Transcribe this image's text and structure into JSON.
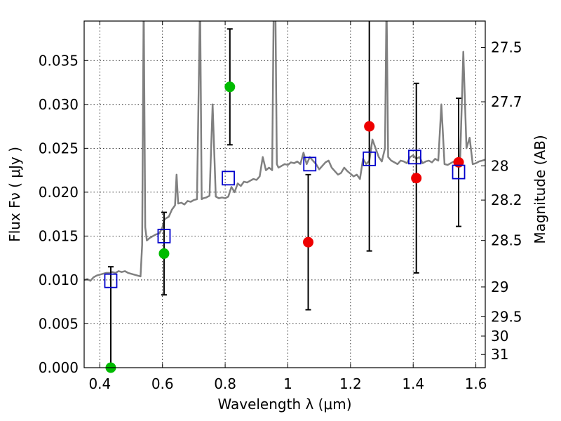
{
  "chart_data": {
    "type": "scatter",
    "xlabel": "Wavelength  λ (μm)",
    "ylabel": "Flux  Fν  ( μJy )",
    "y2label": "Magnitude (AB)",
    "xlim": [
      0.35,
      1.63
    ],
    "ylim": [
      0.0,
      0.0395
    ],
    "grid": true,
    "x_ticks": [
      0.4,
      0.6,
      0.8,
      1.0,
      1.2,
      1.4,
      1.6
    ],
    "x_tick_labels": [
      "0.4",
      "0.6",
      "0.8",
      "1",
      "1.2",
      "1.4",
      "1.6"
    ],
    "y_ticks": [
      0.0,
      0.005,
      0.01,
      0.015,
      0.02,
      0.025,
      0.03,
      0.035
    ],
    "y_tick_labels": [
      "0.000",
      "0.005",
      "0.010",
      "0.015",
      "0.020",
      "0.025",
      "0.030",
      "0.035"
    ],
    "mag_ticks": [
      {
        "label": "27.5",
        "flux": 0.0365
      },
      {
        "label": "27.7",
        "flux": 0.0303
      },
      {
        "label": "28",
        "flux": 0.023
      },
      {
        "label": "28.2",
        "flux": 0.0191
      },
      {
        "label": "28.5",
        "flux": 0.0145
      },
      {
        "label": "29",
        "flux": 0.0092
      },
      {
        "label": "29.5",
        "flux": 0.0058
      },
      {
        "label": "30",
        "flux": 0.0036
      },
      {
        "label": "31",
        "flux": 0.0015
      }
    ],
    "colors": {
      "model_spectrum": "#808080",
      "model_photometry": "#0000cc",
      "optical_detection": "#00bb00",
      "nir_detection": "#ee0000",
      "error_bar": "#000000"
    },
    "model_spectrum": {
      "x": [
        0.35,
        0.36,
        0.37,
        0.38,
        0.39,
        0.4,
        0.41,
        0.42,
        0.43,
        0.44,
        0.45,
        0.46,
        0.47,
        0.48,
        0.49,
        0.5,
        0.51,
        0.52,
        0.53,
        0.535,
        0.54,
        0.545,
        0.55,
        0.56,
        0.57,
        0.58,
        0.59,
        0.6,
        0.605,
        0.61,
        0.62,
        0.63,
        0.64,
        0.645,
        0.65,
        0.66,
        0.67,
        0.68,
        0.69,
        0.7,
        0.71,
        0.72,
        0.725,
        0.73,
        0.74,
        0.75,
        0.76,
        0.77,
        0.78,
        0.79,
        0.8,
        0.81,
        0.82,
        0.83,
        0.84,
        0.85,
        0.86,
        0.87,
        0.88,
        0.89,
        0.9,
        0.91,
        0.92,
        0.93,
        0.94,
        0.95,
        0.955,
        0.96,
        0.965,
        0.97,
        0.98,
        0.99,
        1.0,
        1.01,
        1.02,
        1.03,
        1.04,
        1.05,
        1.06,
        1.07,
        1.08,
        1.09,
        1.1,
        1.11,
        1.12,
        1.13,
        1.14,
        1.15,
        1.16,
        1.17,
        1.18,
        1.19,
        1.2,
        1.21,
        1.22,
        1.23,
        1.24,
        1.25,
        1.26,
        1.27,
        1.28,
        1.29,
        1.3,
        1.31,
        1.315,
        1.32,
        1.33,
        1.34,
        1.35,
        1.36,
        1.37,
        1.38,
        1.39,
        1.4,
        1.41,
        1.42,
        1.43,
        1.44,
        1.45,
        1.46,
        1.47,
        1.48,
        1.49,
        1.5,
        1.51,
        1.52,
        1.53,
        1.54,
        1.55,
        1.56,
        1.57,
        1.58,
        1.59,
        1.6,
        1.61,
        1.62,
        1.63
      ],
      "y": [
        0.01,
        0.0101,
        0.0099,
        0.0103,
        0.0105,
        0.0106,
        0.0107,
        0.0108,
        0.0108,
        0.0109,
        0.0108,
        0.011,
        0.0109,
        0.011,
        0.0108,
        0.0107,
        0.0106,
        0.0105,
        0.0104,
        0.014,
        0.042,
        0.016,
        0.0145,
        0.0148,
        0.015,
        0.0152,
        0.0153,
        0.016,
        0.0168,
        0.017,
        0.0172,
        0.018,
        0.0185,
        0.022,
        0.0187,
        0.0188,
        0.0186,
        0.019,
        0.0189,
        0.0191,
        0.0192,
        0.042,
        0.0192,
        0.0193,
        0.0194,
        0.0196,
        0.03,
        0.0195,
        0.0193,
        0.0194,
        0.0193,
        0.0195,
        0.0206,
        0.02,
        0.021,
        0.0207,
        0.0212,
        0.0211,
        0.0213,
        0.0215,
        0.0214,
        0.0218,
        0.024,
        0.0225,
        0.0228,
        0.0225,
        0.042,
        0.042,
        0.0232,
        0.0228,
        0.023,
        0.0232,
        0.0231,
        0.0234,
        0.0233,
        0.0235,
        0.0232,
        0.0245,
        0.0232,
        0.024,
        0.0236,
        0.0232,
        0.0226,
        0.023,
        0.0234,
        0.0236,
        0.0228,
        0.0224,
        0.022,
        0.0222,
        0.0228,
        0.0224,
        0.0221,
        0.0218,
        0.022,
        0.0215,
        0.0238,
        0.0232,
        0.0236,
        0.026,
        0.025,
        0.024,
        0.0235,
        0.025,
        0.042,
        0.024,
        0.0236,
        0.0234,
        0.0232,
        0.0236,
        0.0235,
        0.0233,
        0.024,
        0.0242,
        0.0238,
        0.024,
        0.0233,
        0.0235,
        0.0236,
        0.0234,
        0.0238,
        0.0236,
        0.03,
        0.0232,
        0.0231,
        0.0233,
        0.0235,
        0.0237,
        0.024,
        0.036,
        0.025,
        0.0262,
        0.0232,
        0.0233,
        0.0235,
        0.0236,
        0.0237
      ]
    },
    "model_photometry": {
      "x": [
        0.435,
        0.605,
        0.81,
        1.07,
        1.26,
        1.405,
        1.545
      ],
      "y": [
        0.0099,
        0.015,
        0.0216,
        0.0232,
        0.0238,
        0.024,
        0.0223
      ]
    },
    "optical_detections": [
      {
        "x": 0.435,
        "y": 0.0,
        "err": 0.0115
      },
      {
        "x": 0.605,
        "y": 0.013,
        "err": 0.0047
      },
      {
        "x": 0.815,
        "y": 0.032,
        "err": 0.0066
      }
    ],
    "nir_detections": [
      {
        "x": 1.065,
        "y": 0.0143,
        "err": 0.0077
      },
      {
        "x": 1.26,
        "y": 0.0275,
        "err": 0.0142
      },
      {
        "x": 1.41,
        "y": 0.0216,
        "err": 0.0108
      },
      {
        "x": 1.545,
        "y": 0.0234,
        "err": 0.0073
      }
    ]
  }
}
